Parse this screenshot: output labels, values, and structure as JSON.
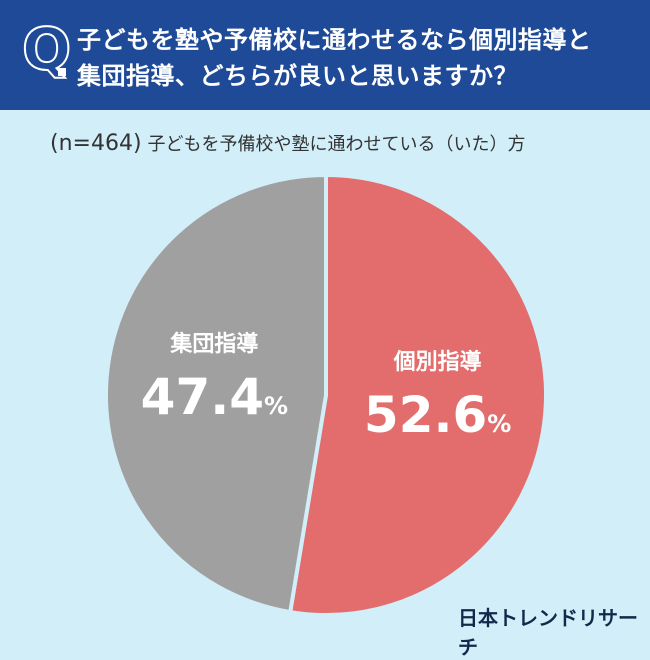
{
  "header": {
    "q_mark": "Q",
    "title_line1": "子どもを塾や予備校に通わせるなら個別指導と",
    "title_line2": "集団指導、どちらが良いと思いますか？"
  },
  "subtitle": {
    "n": "(n=464)",
    "text": "子どもを予備校や塾に通わせている（いた）方"
  },
  "logo": "日本トレンドリサーチ",
  "chart_data": {
    "type": "pie",
    "start": "top, clockwise",
    "slices": [
      {
        "label": "個別指導",
        "value": 52.6,
        "display": "52.6",
        "unit": "%",
        "color": "#e36c6c"
      },
      {
        "label": "集団指導",
        "value": 47.4,
        "display": "47.4",
        "unit": "%",
        "color": "#a0a0a0"
      }
    ]
  }
}
